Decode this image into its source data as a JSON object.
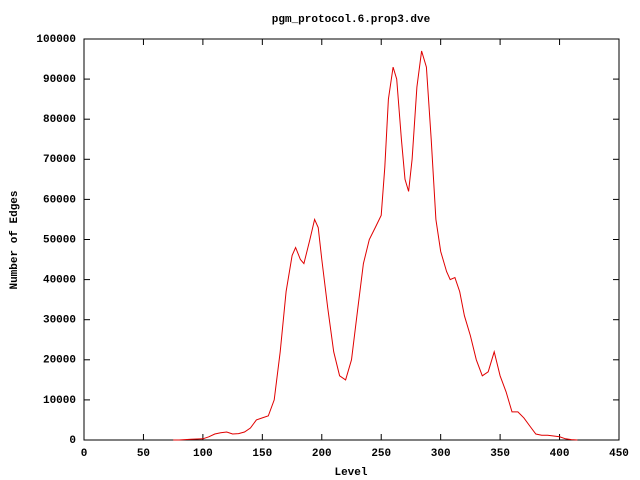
{
  "chart_data": {
    "type": "line",
    "title": "pgm_protocol.6.prop3.dve",
    "x_label": "Level",
    "y_label": "Number of Edges",
    "x": [
      75,
      80,
      90,
      100,
      105,
      110,
      115,
      120,
      125,
      130,
      135,
      140,
      145,
      150,
      155,
      160,
      165,
      170,
      175,
      178,
      182,
      185,
      190,
      194,
      197,
      200,
      205,
      210,
      215,
      220,
      225,
      230,
      235,
      240,
      245,
      250,
      253,
      256,
      260,
      263,
      267,
      270,
      273,
      276,
      280,
      284,
      288,
      292,
      296,
      300,
      305,
      308,
      312,
      316,
      320,
      325,
      330,
      335,
      340,
      345,
      350,
      355,
      360,
      365,
      370,
      375,
      380,
      385,
      390,
      395,
      400,
      405,
      410,
      415
    ],
    "series": [
      {
        "name": "edges",
        "color": "#e00000",
        "values": [
          0,
          0,
          200,
          300,
          800,
          1500,
          1800,
          2000,
          1500,
          1600,
          2000,
          3000,
          5000,
          5500,
          6000,
          10000,
          22000,
          37000,
          46000,
          48000,
          45000,
          44000,
          50000,
          55000,
          53000,
          45000,
          33000,
          22000,
          16000,
          15000,
          20000,
          32000,
          44000,
          50000,
          53000,
          56000,
          68000,
          85000,
          93000,
          90000,
          75000,
          65000,
          62000,
          70000,
          88000,
          97000,
          93000,
          75000,
          55000,
          47000,
          42000,
          40000,
          40500,
          37000,
          31000,
          26000,
          20000,
          16000,
          17000,
          22000,
          16000,
          12000,
          7000,
          7000,
          5500,
          3500,
          1500,
          1200,
          1200,
          1000,
          800,
          300,
          100,
          0
        ]
      }
    ],
    "xlim": [
      0,
      450
    ],
    "xticks": [
      0,
      50,
      100,
      150,
      200,
      250,
      300,
      350,
      400,
      450
    ],
    "ylim": [
      0,
      100000
    ],
    "yticks": [
      0,
      10000,
      20000,
      30000,
      40000,
      50000,
      60000,
      70000,
      80000,
      90000,
      100000
    ]
  }
}
